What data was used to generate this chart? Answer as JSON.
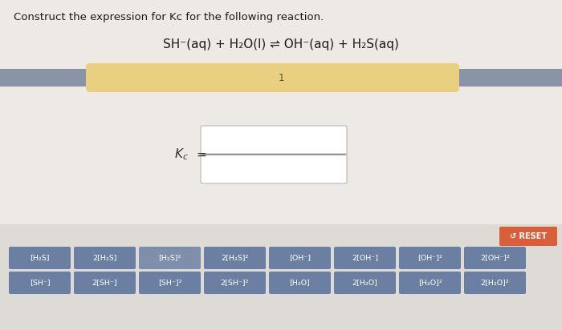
{
  "title": "Construct the expression for Kc for the following reaction.",
  "reaction_parts": [
    "SH⁻(aq) + H₂O(l) ",
    "⇌",
    " OH⁻(aq) + H₂S(aq)"
  ],
  "bg_color": "#edeae6",
  "banner_bg_color": "#8a93a8",
  "banner_pill_color": "#e8d080",
  "banner_text": "1",
  "kc_label": "K",
  "kc_sub": "c",
  "box_border": "#b8b8b8",
  "box_bg": "#ffffff",
  "fraction_line_color": "#888888",
  "reset_bg": "#d95f3b",
  "reset_text": "↺ RESET",
  "button_bg": "#6b7fa3",
  "button_text_color": "#ffffff",
  "buttons_row1": [
    "[H₂S]",
    "2[H₂S]",
    "[H₂S]²",
    "2[H₂S]²",
    "[OH⁻]",
    "2[OH⁻]",
    "[OH⁻]²",
    "2[OH⁻]²"
  ],
  "buttons_row2": [
    "[SH⁻]",
    "2[SH⁻]",
    "[SH⁻]²",
    "2[SH⁻]²",
    "[H₂O]",
    "2[H₂O]",
    "[H₂O]²",
    "2[H₂O]²"
  ],
  "highlight_btn_idx": 2,
  "highlight_btn_color": "#7d8faa"
}
